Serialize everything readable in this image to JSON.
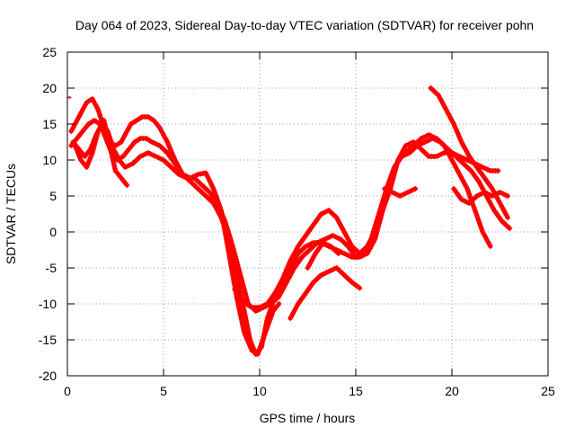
{
  "chart_data": {
    "type": "scatter",
    "title": "Day 064 of 2023, Sidereal Day-to-day VTEC variation (SDTVAR) for receiver pohn",
    "xlabel": "GPS time / hours",
    "ylabel": "SDTVAR / TECUs",
    "xlim": [
      0,
      25
    ],
    "ylim": [
      -20,
      25
    ],
    "x_ticks": [
      0,
      5,
      10,
      15,
      20,
      25
    ],
    "y_ticks": [
      -20,
      -15,
      -10,
      -5,
      0,
      5,
      10,
      15,
      20,
      25
    ],
    "x_tick_labels": [
      "0",
      "5",
      "10",
      "15",
      "20",
      "25"
    ],
    "y_tick_labels": [
      "-20",
      "-15",
      "-10",
      "-5",
      "0",
      "5",
      "10",
      "15",
      "20",
      "25"
    ],
    "grid": true,
    "series_color": "#ff0000",
    "series": [
      {
        "x": [
          0.2,
          0.5,
          0.8,
          1.0,
          1.3,
          1.6,
          1.9,
          2.2,
          2.5,
          2.8,
          3.1,
          3.3,
          3.6,
          3.9,
          4.2,
          4.5,
          4.8,
          5.2,
          5.6,
          6.0,
          6.4,
          6.8,
          7.2,
          7.6,
          8.0,
          8.4,
          8.8,
          9.2,
          9.6,
          9.9,
          10.3,
          10.7,
          11.0
        ],
        "y": [
          14,
          15.5,
          17,
          18,
          18.5,
          17,
          14.5,
          12.5,
          12,
          12.5,
          14,
          15,
          15.5,
          16,
          16,
          15.5,
          14.5,
          12.5,
          10,
          8,
          7.5,
          8,
          8.2,
          6,
          3,
          -3,
          -9,
          -14,
          -16.5,
          -17,
          -14,
          -11,
          -10
        ]
      },
      {
        "x": [
          0.2,
          0.5,
          0.8,
          1.1,
          1.4,
          1.7,
          2.0,
          2.3,
          2.6,
          2.9,
          3.2,
          3.5,
          3.8,
          4.1,
          4.4,
          4.8,
          5.2,
          5.6,
          6.0,
          6.4,
          6.8,
          7.2,
          7.6,
          8.0,
          8.4,
          8.8,
          9.2,
          9.5,
          9.8,
          10.1,
          10.4,
          10.8,
          11.2,
          11.6,
          12.0,
          12.4,
          12.8,
          13.2,
          13.6,
          14.0,
          14.4,
          14.8,
          15.2,
          15.6,
          16.0,
          16.4,
          16.8,
          17.2,
          17.6,
          18.0,
          18.4,
          18.8,
          19.2,
          19.6,
          20.0,
          20.4,
          20.8,
          21.2,
          21.6,
          22.0
        ],
        "y": [
          12,
          13,
          14,
          15,
          15.5,
          15,
          13,
          11,
          10,
          10.5,
          11.5,
          12.5,
          13,
          13,
          12.5,
          12,
          11,
          9.5,
          8,
          7,
          6,
          5,
          4,
          2,
          -1,
          -6,
          -11,
          -15,
          -17,
          -16,
          -12,
          -9,
          -7,
          -5,
          -3,
          -2,
          -1.5,
          -1.5,
          -2,
          -2.5,
          -3,
          -3.5,
          -3.5,
          -3,
          -1,
          3,
          7,
          10,
          11,
          12,
          13,
          13.5,
          13,
          12,
          10,
          8,
          6,
          3,
          0,
          -2
        ]
      },
      {
        "x": [
          0.3,
          0.6,
          0.9,
          1.2,
          1.5,
          1.8,
          2.1,
          2.4,
          2.7,
          3.0,
          3.4,
          3.8,
          4.2,
          4.6,
          5.0,
          5.4,
          5.8,
          6.2,
          6.6,
          7.0,
          7.4,
          7.8,
          8.2,
          8.6,
          9.0,
          9.4,
          9.8,
          10.2,
          10.6,
          11.0,
          11.4,
          11.8,
          12.2,
          12.6,
          13.0,
          13.4,
          13.8,
          14.2,
          14.6,
          15.0,
          15.4,
          15.8,
          16.2,
          16.6,
          17.0,
          17.4,
          17.8,
          18.2,
          18.6,
          19.0,
          19.4,
          19.8,
          20.2,
          20.6,
          21.0,
          21.4,
          21.8,
          22.2,
          22.6,
          23.0
        ],
        "y": [
          12.5,
          11.5,
          10.5,
          11.5,
          13.5,
          15,
          14,
          11.5,
          10,
          9,
          9.5,
          10.5,
          11,
          10.5,
          10,
          9,
          8,
          7.5,
          7.5,
          6.5,
          5.5,
          4,
          1.5,
          -2,
          -6,
          -10,
          -11,
          -10.5,
          -10,
          -9,
          -7,
          -5,
          -3.5,
          -2.5,
          -1.5,
          -1,
          -0.5,
          -1,
          -2,
          -3.5,
          -3,
          -1,
          2.5,
          6,
          9,
          10.5,
          11,
          12,
          12.5,
          13,
          12.5,
          11.5,
          10.5,
          9.5,
          8.5,
          7,
          5,
          3,
          1.5,
          0.5
        ]
      },
      {
        "x": [
          0.4,
          0.7,
          1.0,
          1.3,
          1.6,
          1.9,
          2.2,
          2.5,
          2.8,
          3.1
        ],
        "y": [
          12,
          10,
          9,
          11,
          14,
          15.5,
          12,
          8.5,
          7.5,
          6.5
        ]
      },
      {
        "x": [
          8.7,
          9.0,
          9.3,
          9.6,
          10.0,
          10.4,
          10.8,
          11.2,
          11.6,
          12.0,
          12.4,
          12.8,
          13.2,
          13.6,
          14.0,
          14.4,
          14.8,
          15.2,
          15.6,
          16.0,
          16.4,
          16.8,
          17.2,
          17.6,
          18.0,
          18.4,
          18.8,
          19.2,
          19.6,
          20.0,
          20.4,
          20.8,
          21.2,
          21.6,
          22.0,
          22.4
        ],
        "y": [
          -8,
          -9,
          -10,
          -10.5,
          -10.5,
          -10,
          -8.5,
          -6.5,
          -4,
          -2,
          -0.5,
          1,
          2.5,
          3,
          2,
          0,
          -2,
          -3,
          -2,
          0,
          3,
          6,
          10,
          12,
          12.5,
          11.5,
          10.5,
          10.5,
          11,
          11,
          10.5,
          10,
          9.5,
          9,
          8.5,
          8.5
        ]
      },
      {
        "x": [
          11.6,
          12.0,
          12.4,
          12.8,
          13.2,
          13.6,
          14.0,
          14.4,
          14.8,
          15.2
        ],
        "y": [
          -12,
          -10,
          -8.5,
          -7,
          -6,
          -5.5,
          -5,
          -6,
          -7,
          -7.8
        ]
      },
      {
        "x": [
          12.5,
          12.9,
          13.3,
          13.7,
          14.1
        ],
        "y": [
          -5,
          -3,
          -1.5,
          -2,
          -3
        ]
      },
      {
        "x": [
          16.5,
          16.9,
          17.3,
          17.7,
          18.1
        ],
        "y": [
          6,
          5.5,
          5,
          5.5,
          6
        ]
      },
      {
        "x": [
          18.9,
          19.3,
          19.7,
          20.1,
          20.5,
          20.9,
          21.3,
          21.7,
          22.1,
          22.5,
          22.9
        ],
        "y": [
          20,
          19,
          17,
          15,
          12.5,
          10.5,
          9,
          7.5,
          6,
          4,
          2
        ]
      },
      {
        "x": [
          20.1,
          20.5,
          20.9,
          21.3,
          21.7,
          22.1,
          22.5,
          22.9
        ],
        "y": [
          6,
          4.5,
          4,
          5,
          5.5,
          5,
          5.5,
          5
        ]
      }
    ],
    "annotations": [
      {
        "x": [
          0.0,
          0.2
        ],
        "y": [
          18.7,
          18.7
        ]
      }
    ]
  }
}
